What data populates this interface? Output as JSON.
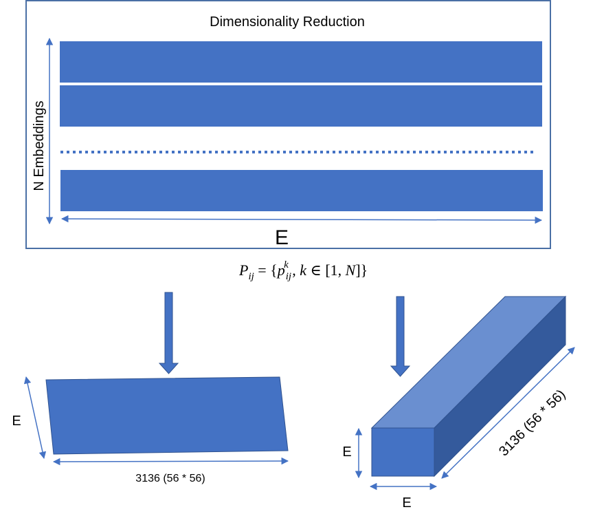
{
  "top_panel": {
    "title": "Dimensionality Reduction",
    "vertical_label": "N Embeddings",
    "horizontal_label": "E"
  },
  "formula": {
    "text": "P_ij = {p_ij^k , k ∈ [1, N]}"
  },
  "left_shape": {
    "height_label": "E",
    "width_label": "3136 (56 * 56)"
  },
  "right_shape": {
    "height_label": "E",
    "width_label": "E",
    "depth_label": "3136 (56 * 56)"
  },
  "colors": {
    "fill": "#4472c4",
    "fill_light": "#6a8fd0",
    "fill_dark": "#345a9c",
    "stroke": "#2f528f",
    "frame": "#4a6fa5"
  }
}
